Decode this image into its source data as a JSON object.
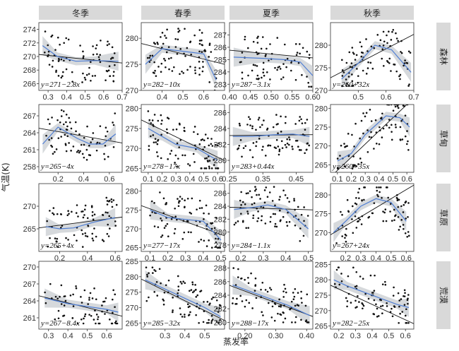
{
  "xlabel": "蒸发率",
  "ylabel": "气温(K)",
  "columns": [
    "冬季",
    "春季",
    "夏季",
    "秋季"
  ],
  "rows": [
    "森林",
    "草甸",
    "草原",
    "荒漠"
  ],
  "colors": {
    "points": "#111111",
    "lm": "#111111",
    "loess": "#4f7ed4",
    "band": "#c8ccd0",
    "strip_bg": "#d9d9d9",
    "panel_border": "#333333"
  },
  "chart_data": [
    {
      "type": "scatter",
      "row": "森林",
      "col": "冬季",
      "xlim": [
        0.25,
        0.7
      ],
      "ylim": [
        265,
        275
      ],
      "xticks": [
        "0.3",
        "0.4",
        "0.5",
        "0.6",
        "0.7"
      ],
      "yticks": [
        "266",
        "268",
        "270",
        "272",
        "274"
      ],
      "equation": "y=271−2.8x",
      "intercept": 271,
      "slope": -2.8,
      "loess_x": [
        0.27,
        0.35,
        0.45,
        0.55,
        0.68
      ],
      "loess_y": [
        271.6,
        270.0,
        269.3,
        269.4,
        269.3
      ],
      "n_points": 80,
      "x_range": [
        0.28,
        0.66
      ],
      "y_range": [
        265.5,
        274
      ]
    },
    {
      "type": "scatter",
      "row": "森林",
      "col": "春季",
      "xlim": [
        0.3,
        0.7
      ],
      "ylim": [
        270,
        283
      ],
      "xticks": [
        "0.4",
        "0.5",
        "0.6"
      ],
      "yticks": [
        "270",
        "275",
        "280"
      ],
      "equation": "y=282−10x",
      "intercept": 282,
      "slope": -10,
      "loess_x": [
        0.32,
        0.4,
        0.5,
        0.6,
        0.66
      ],
      "loess_y": [
        275,
        278,
        277.5,
        277,
        272
      ],
      "n_points": 85,
      "x_range": [
        0.32,
        0.66
      ],
      "y_range": [
        270,
        282
      ]
    },
    {
      "type": "scatter",
      "row": "森林",
      "col": "夏季",
      "xlim": [
        0.4,
        0.6
      ],
      "ylim": [
        282.5,
        288
      ],
      "xticks": [
        "0.40",
        "0.45",
        "0.50",
        "0.55",
        "0.60"
      ],
      "yticks": [
        "283",
        "284",
        "285",
        "286",
        "287"
      ],
      "equation": "y=287−3.1x",
      "intercept": 287,
      "slope": -3.1,
      "loess_x": [
        0.41,
        0.48,
        0.53,
        0.57,
        0.6
      ],
      "loess_y": [
        285.2,
        285.1,
        285.0,
        284.8,
        283.7
      ],
      "n_points": 75,
      "x_range": [
        0.42,
        0.6
      ],
      "y_range": [
        282.8,
        287.5
      ]
    },
    {
      "type": "scatter",
      "row": "森林",
      "col": "秋季",
      "xlim": [
        0.4,
        0.7
      ],
      "ylim": [
        270,
        285
      ],
      "xticks": [
        "0.5",
        "0.6",
        "0.7"
      ],
      "yticks": [
        "270",
        "275",
        "280"
      ],
      "equation": "y=260+32x",
      "intercept": 260,
      "slope": 32,
      "loess_x": [
        0.44,
        0.5,
        0.56,
        0.62,
        0.69
      ],
      "loess_y": [
        272.5,
        276,
        280,
        279,
        274
      ],
      "n_points": 90,
      "x_range": [
        0.44,
        0.69
      ],
      "y_range": [
        271,
        284
      ]
    },
    {
      "type": "scatter",
      "row": "草甸",
      "col": "冬季",
      "xlim": [
        0.05,
        0.7
      ],
      "ylim": [
        257,
        269
      ],
      "xticks": [
        "0.2",
        "0.4",
        "0.6"
      ],
      "yticks": [
        "258",
        "261",
        "264",
        "267"
      ],
      "equation": "y=265−4x",
      "intercept": 265,
      "slope": -4,
      "loess_x": [
        0.08,
        0.2,
        0.35,
        0.45,
        0.55,
        0.65
      ],
      "loess_y": [
        262,
        265,
        263,
        262,
        262,
        263.8
      ],
      "n_points": 75,
      "x_range": [
        0.08,
        0.65
      ],
      "y_range": [
        258,
        268
      ]
    },
    {
      "type": "scatter",
      "row": "草甸",
      "col": "春季",
      "xlim": [
        0.05,
        0.65
      ],
      "ylim": [
        264,
        281
      ],
      "xticks": [
        "0.1",
        "0.2",
        "0.3",
        "0.4",
        "0.5",
        "0.6"
      ],
      "yticks": [
        "265",
        "270",
        "275",
        "280"
      ],
      "equation": "y=278−17x",
      "intercept": 278,
      "slope": -17,
      "loess_x": [
        0.1,
        0.2,
        0.3,
        0.45,
        0.6
      ],
      "loess_y": [
        275,
        273,
        271,
        270,
        267
      ],
      "n_points": 90,
      "x_range": [
        0.1,
        0.62
      ],
      "y_range": [
        265,
        280
      ]
    },
    {
      "type": "scatter",
      "row": "草甸",
      "col": "夏季",
      "xlim": [
        0.25,
        0.5
      ],
      "ylim": [
        278.5,
        287
      ],
      "xticks": [
        "0.25",
        "0.35",
        "0.45"
      ],
      "yticks": [
        "280",
        "282",
        "284",
        "286"
      ],
      "equation": "y=283+0.44x",
      "intercept": 283,
      "slope": 0.44,
      "loess_x": [
        0.26,
        0.32,
        0.38,
        0.44,
        0.49
      ],
      "loess_y": [
        283,
        283,
        283.2,
        283.3,
        283
      ],
      "n_points": 85,
      "x_range": [
        0.27,
        0.49
      ],
      "y_range": [
        279,
        286
      ]
    },
    {
      "type": "scatter",
      "row": "草甸",
      "col": "秋季",
      "xlim": [
        0.05,
        0.65
      ],
      "ylim": [
        263,
        281
      ],
      "xticks": [
        "0.1",
        "0.2",
        "0.3",
        "0.4",
        "0.5",
        "0.6"
      ],
      "yticks": [
        "265",
        "270",
        "275",
        "280"
      ],
      "equation": "y=260+35x",
      "intercept": 260,
      "slope": 35,
      "loess_x": [
        0.1,
        0.2,
        0.3,
        0.45,
        0.55,
        0.62
      ],
      "loess_y": [
        266,
        268,
        273,
        278,
        277.5,
        275
      ],
      "n_points": 90,
      "x_range": [
        0.1,
        0.62
      ],
      "y_range": [
        264,
        281
      ]
    },
    {
      "type": "scatter",
      "row": "草原",
      "col": "冬季",
      "xlim": [
        0.05,
        0.65
      ],
      "ylim": [
        260,
        275
      ],
      "xticks": [
        "0.2",
        "0.4",
        "0.6"
      ],
      "yticks": [
        "265",
        "270"
      ],
      "equation": "y=265+4x",
      "intercept": 265,
      "slope": 4,
      "loess_x": [
        0.1,
        0.2,
        0.3,
        0.45,
        0.6
      ],
      "loess_y": [
        265.5,
        265,
        265.2,
        266.5,
        267.5
      ],
      "n_points": 80,
      "x_range": [
        0.1,
        0.62
      ],
      "y_range": [
        261,
        274
      ]
    },
    {
      "type": "scatter",
      "row": "草原",
      "col": "春季",
      "xlim": [
        0.05,
        0.52
      ],
      "ylim": [
        264,
        282
      ],
      "xticks": [
        "0.1",
        "0.2",
        "0.3",
        "0.4",
        "0.5"
      ],
      "yticks": [
        "265",
        "270",
        "275",
        "280"
      ],
      "equation": "y=277−17x",
      "intercept": 277,
      "slope": -17,
      "loess_x": [
        0.1,
        0.2,
        0.3,
        0.4,
        0.5
      ],
      "loess_y": [
        275,
        273,
        272.5,
        272,
        267
      ],
      "n_points": 90,
      "x_range": [
        0.1,
        0.5
      ],
      "y_range": [
        265,
        281
      ]
    },
    {
      "type": "scatter",
      "row": "草原",
      "col": "夏季",
      "xlim": [
        0.15,
        0.52
      ],
      "ylim": [
        277,
        287.5
      ],
      "xticks": [
        "0.2",
        "0.3",
        "0.4",
        "0.5"
      ],
      "yticks": [
        "278",
        "280",
        "282",
        "284",
        "286"
      ],
      "equation": "y=284−1.1x",
      "intercept": 284,
      "slope": -1.1,
      "loess_x": [
        0.17,
        0.25,
        0.32,
        0.4,
        0.5
      ],
      "loess_y": [
        283.5,
        283.8,
        284.2,
        283.5,
        280.5
      ],
      "n_points": 85,
      "x_range": [
        0.17,
        0.5
      ],
      "y_range": [
        278,
        287
      ]
    },
    {
      "type": "scatter",
      "row": "草原",
      "col": "秋季",
      "xlim": [
        0.1,
        0.65
      ],
      "ylim": [
        265,
        283
      ],
      "xticks": [
        "0.2",
        "0.3",
        "0.4",
        "0.5",
        "0.6"
      ],
      "yticks": [
        "270",
        "275",
        "280"
      ],
      "equation": "y=267+24x",
      "intercept": 267,
      "slope": 24,
      "loess_x": [
        0.12,
        0.2,
        0.3,
        0.4,
        0.5,
        0.6
      ],
      "loess_y": [
        270,
        273,
        277,
        279,
        278,
        273
      ],
      "n_points": 90,
      "x_range": [
        0.12,
        0.62
      ],
      "y_range": [
        267,
        282
      ]
    },
    {
      "type": "scatter",
      "row": "荒漠",
      "col": "冬季",
      "xlim": [
        0.25,
        0.68
      ],
      "ylim": [
        259,
        271
      ],
      "xticks": [
        "0.3",
        "0.4",
        "0.5",
        "0.6"
      ],
      "yticks": [
        "261",
        "264",
        "267",
        "270"
      ],
      "equation": "y=267−8.4x",
      "intercept": 267,
      "slope": -8.4,
      "loess_x": [
        0.28,
        0.4,
        0.5,
        0.6,
        0.66
      ],
      "loess_y": [
        264.5,
        263.5,
        263,
        262.5,
        262
      ],
      "n_points": 70,
      "x_range": [
        0.28,
        0.66
      ],
      "y_range": [
        260,
        270
      ]
    },
    {
      "type": "scatter",
      "row": "荒漠",
      "col": "春季",
      "xlim": [
        0.18,
        0.6
      ],
      "ylim": [
        263,
        285
      ],
      "xticks": [
        "0.3",
        "0.4",
        "0.5"
      ],
      "yticks": [
        "265",
        "270",
        "275",
        "280",
        "285"
      ],
      "equation": "y=285−32x",
      "intercept": 285,
      "slope": -32,
      "loess_x": [
        0.2,
        0.3,
        0.4,
        0.5,
        0.58
      ],
      "loess_y": [
        279,
        276,
        273,
        270,
        267
      ],
      "n_points": 90,
      "x_range": [
        0.2,
        0.58
      ],
      "y_range": [
        265,
        283
      ]
    },
    {
      "type": "scatter",
      "row": "荒漠",
      "col": "夏季",
      "xlim": [
        0.15,
        0.42
      ],
      "ylim": [
        279,
        289
      ],
      "xticks": [
        "0.20",
        "0.30",
        "0.40"
      ],
      "yticks": [
        "280",
        "282",
        "284",
        "286",
        "288"
      ],
      "equation": "y=288−17x",
      "intercept": 288,
      "slope": -17,
      "loess_x": [
        0.16,
        0.22,
        0.28,
        0.34,
        0.41
      ],
      "loess_y": [
        285.5,
        284.5,
        283.5,
        282.5,
        281
      ],
      "n_points": 85,
      "x_range": [
        0.16,
        0.41
      ],
      "y_range": [
        280,
        288
      ]
    },
    {
      "type": "scatter",
      "row": "荒漠",
      "col": "秋季",
      "xlim": [
        0.15,
        0.65
      ],
      "ylim": [
        264,
        286
      ],
      "xticks": [
        "0.2",
        "0.3",
        "0.4",
        "0.5",
        "0.6"
      ],
      "yticks": [
        "265",
        "270",
        "275",
        "280",
        "285"
      ],
      "equation": "y=282−25x",
      "intercept": 282,
      "slope": -25,
      "loess_x": [
        0.17,
        0.25,
        0.35,
        0.45,
        0.55,
        0.62
      ],
      "loess_y": [
        280,
        278,
        276,
        274,
        272,
        271
      ],
      "n_points": 85,
      "x_range": [
        0.17,
        0.62
      ],
      "y_range": [
        266,
        284
      ]
    }
  ]
}
